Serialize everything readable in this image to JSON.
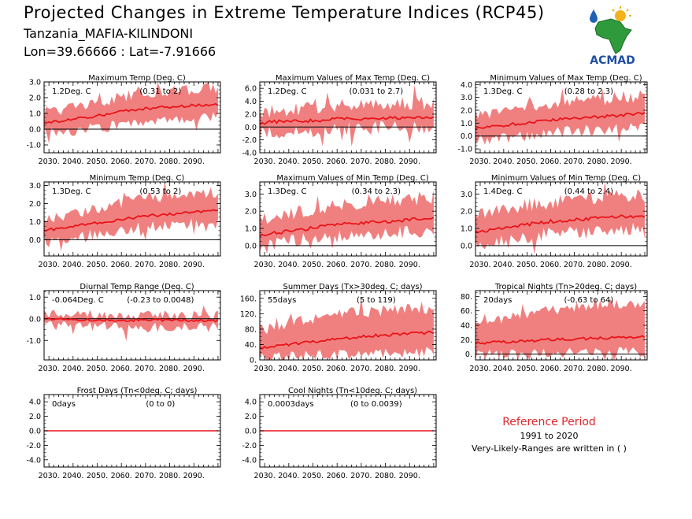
{
  "header": {
    "title": "Projected Changes in Extreme Temperature Indices (RCP45)",
    "location": "Tanzania_MAFIA-KILINDONI",
    "coordinates": "Lon=39.66666 : Lat=-7.91666"
  },
  "logo": {
    "text": "ACMAD",
    "icon": "africa-map-logo"
  },
  "reference": {
    "title": "Reference Period",
    "years": "1991 to 2020",
    "note": "Very-Likely-Ranges are written in ( )"
  },
  "colors": {
    "band": "#f08080",
    "line": "#e8141a",
    "zero": "#000000",
    "frame": "#000000"
  },
  "chart_data": [
    {
      "id": "max-temp",
      "type": "area",
      "title": "Maximum Temp (Deg. C)",
      "value_label": "1.2Deg. C",
      "range_label": "(0.31 to 2)",
      "ylim": [
        -1.5,
        3.0
      ],
      "yticks": [
        -1.0,
        0.0,
        1.0,
        2.0,
        3.0
      ],
      "xticks": [
        2030,
        2040,
        2050,
        2060,
        2070,
        2080,
        2090
      ],
      "median": [
        0.4,
        0.6,
        0.8,
        1.1,
        1.3,
        1.4,
        1.5,
        1.6
      ],
      "lower": [
        -0.2,
        -0.1,
        0.1,
        0.3,
        0.5,
        0.6,
        0.7,
        0.8
      ],
      "upper": [
        1.1,
        1.3,
        1.6,
        2.0,
        2.3,
        2.4,
        2.5,
        2.6
      ],
      "noise": 0.35,
      "seed": 3
    },
    {
      "id": "max-of-max-temp",
      "type": "area",
      "title": "Maximum Values of Max Temp (Deg. C)",
      "value_label": "1.2Deg. C",
      "range_label": "(0.031 to 2.7)",
      "ylim": [
        -4.0,
        7.0
      ],
      "yticks": [
        -4.0,
        -2.0,
        0.0,
        2.0,
        4.0,
        6.0
      ],
      "xticks": [
        2030,
        2040,
        2050,
        2060,
        2070,
        2080,
        2090
      ],
      "median": [
        0.6,
        0.9,
        1.0,
        1.2,
        1.3,
        1.4,
        1.5,
        1.6
      ],
      "lower": [
        -0.9,
        -0.8,
        -0.6,
        -0.4,
        -0.2,
        -0.1,
        0.0,
        0.1
      ],
      "upper": [
        2.3,
        2.6,
        3.0,
        3.2,
        3.4,
        3.5,
        3.6,
        3.8
      ],
      "noise": 1.1,
      "seed": 7
    },
    {
      "id": "min-of-max-temp",
      "type": "area",
      "title": "Minimum Values of Max Temp (Deg. C)",
      "value_label": "1.3Deg. C",
      "range_label": "(0.28 to 2.3)",
      "ylim": [
        -1.3,
        4.2
      ],
      "yticks": [
        -1.0,
        0.0,
        1.0,
        2.0,
        3.0,
        4.0
      ],
      "xticks": [
        2030,
        2040,
        2050,
        2060,
        2070,
        2080,
        2090
      ],
      "median": [
        0.6,
        0.8,
        1.0,
        1.2,
        1.4,
        1.5,
        1.6,
        1.8
      ],
      "lower": [
        -0.3,
        -0.2,
        0.0,
        0.2,
        0.4,
        0.5,
        0.6,
        0.7
      ],
      "upper": [
        1.6,
        1.9,
        2.2,
        2.5,
        2.7,
        2.8,
        2.9,
        3.0
      ],
      "noise": 0.45,
      "seed": 11
    },
    {
      "id": "min-temp",
      "type": "area",
      "title": "Minimum Temp (Deg. C)",
      "value_label": "1.3Deg. C",
      "range_label": "(0.53 to 2)",
      "ylim": [
        -0.9,
        3.2
      ],
      "yticks": [
        0.0,
        1.0,
        2.0,
        3.0
      ],
      "xticks": [
        2030,
        2040,
        2050,
        2060,
        2070,
        2080,
        2090
      ],
      "median": [
        0.5,
        0.7,
        0.9,
        1.1,
        1.3,
        1.4,
        1.5,
        1.6
      ],
      "lower": [
        0.0,
        0.1,
        0.3,
        0.5,
        0.7,
        0.8,
        0.9,
        1.0
      ],
      "upper": [
        1.1,
        1.4,
        1.7,
        2.0,
        2.3,
        2.4,
        2.5,
        2.6
      ],
      "noise": 0.3,
      "seed": 13
    },
    {
      "id": "max-of-min-temp",
      "type": "area",
      "title": "Maximum Values of Min Temp (Deg. C)",
      "value_label": "1.3Deg. C",
      "range_label": "(0.34 to 2.3)",
      "ylim": [
        -0.6,
        3.7
      ],
      "yticks": [
        0.0,
        1.0,
        2.0,
        3.0
      ],
      "xticks": [
        2030,
        2040,
        2050,
        2060,
        2070,
        2080,
        2090
      ],
      "median": [
        0.6,
        0.8,
        1.0,
        1.2,
        1.3,
        1.4,
        1.5,
        1.6
      ],
      "lower": [
        0.0,
        0.2,
        0.4,
        0.5,
        0.6,
        0.7,
        0.8,
        0.9
      ],
      "upper": [
        1.5,
        1.8,
        2.1,
        2.3,
        2.5,
        2.6,
        2.7,
        2.8
      ],
      "noise": 0.4,
      "seed": 17
    },
    {
      "id": "min-of-min-temp",
      "type": "area",
      "title": "Minimum Values of Min Temp (Deg. C)",
      "value_label": "1.4Deg. C",
      "range_label": "(0.44 to 2.4)",
      "ylim": [
        -0.6,
        3.7
      ],
      "yticks": [
        0.0,
        1.0,
        2.0,
        3.0
      ],
      "xticks": [
        2030,
        2040,
        2050,
        2060,
        2070,
        2080,
        2090
      ],
      "median": [
        0.8,
        1.0,
        1.2,
        1.4,
        1.5,
        1.6,
        1.7,
        1.7
      ],
      "lower": [
        0.1,
        0.3,
        0.5,
        0.7,
        0.8,
        0.9,
        1.0,
        1.0
      ],
      "upper": [
        1.7,
        2.0,
        2.3,
        2.5,
        2.7,
        2.8,
        2.9,
        2.9
      ],
      "noise": 0.4,
      "seed": 19
    },
    {
      "id": "diurnal-temp-range",
      "type": "area",
      "title": "Diurnal Temp Range (Deg. C)",
      "value_label": "-0.064Deg. C",
      "range_label": "(-0.23 to 0.0048)",
      "ylim": [
        -1.9,
        1.3
      ],
      "yticks": [
        -1.0,
        0.0,
        1.0
      ],
      "xticks": [
        2030,
        2040,
        2050,
        2060,
        2070,
        2080,
        2090
      ],
      "median": [
        0.0,
        -0.05,
        -0.05,
        -0.06,
        -0.06,
        -0.07,
        -0.07,
        -0.07
      ],
      "lower": [
        -0.3,
        -0.3,
        -0.35,
        -0.35,
        -0.4,
        -0.4,
        -0.4,
        -0.4
      ],
      "upper": [
        0.2,
        0.2,
        0.18,
        0.18,
        0.15,
        0.15,
        0.15,
        0.15
      ],
      "noise": 0.25,
      "seed": 23
    },
    {
      "id": "summer-days",
      "type": "area",
      "title": "Summer Days (Tx>30deg. C; days)",
      "value_label": "55days",
      "range_label": "(5 to 119)",
      "ylim": [
        0,
        180
      ],
      "yticks": [
        0,
        40,
        80,
        120,
        160
      ],
      "xticks": [
        2030,
        2040,
        2050,
        2060,
        2070,
        2080,
        2090
      ],
      "median": [
        30,
        38,
        46,
        54,
        60,
        65,
        68,
        72
      ],
      "lower": [
        5,
        8,
        10,
        13,
        15,
        17,
        18,
        20
      ],
      "upper": [
        78,
        92,
        105,
        115,
        122,
        128,
        132,
        135
      ],
      "noise": 15,
      "seed": 29
    },
    {
      "id": "tropical-nights",
      "type": "area",
      "title": "Tropical Nights (Tn>20deg. C; days)",
      "value_label": "20days",
      "range_label": "(-0.63 to 64)",
      "ylim": [
        -8,
        88
      ],
      "yticks": [
        0,
        20,
        40,
        60,
        80
      ],
      "xticks": [
        2030,
        2040,
        2050,
        2060,
        2070,
        2080,
        2090
      ],
      "median": [
        15,
        17,
        18,
        20,
        21,
        22,
        23,
        24
      ],
      "lower": [
        0,
        0,
        1,
        2,
        2,
        3,
        3,
        3
      ],
      "upper": [
        42,
        48,
        55,
        60,
        64,
        67,
        69,
        70
      ],
      "noise": 7,
      "seed": 31
    },
    {
      "id": "frost-days",
      "type": "area",
      "title": "Frost Days (Tn<0deg. C; days)",
      "value_label": "0days",
      "range_label": "(0 to 0)",
      "ylim": [
        -5,
        5
      ],
      "yticks": [
        -4.0,
        -2.0,
        0.0,
        2.0,
        4.0
      ],
      "xticks": [
        2030,
        2040,
        2050,
        2060,
        2070,
        2080,
        2090
      ],
      "median": [
        0,
        0,
        0,
        0,
        0,
        0,
        0,
        0
      ],
      "lower": [
        0,
        0,
        0,
        0,
        0,
        0,
        0,
        0
      ],
      "upper": [
        0,
        0,
        0,
        0,
        0,
        0,
        0,
        0
      ],
      "noise": 0,
      "seed": 1
    },
    {
      "id": "cool-nights",
      "type": "area",
      "title": "Cool Nights (Tn<10deg. C; days)",
      "value_label": "0.0003days",
      "range_label": "(0 to 0.0039)",
      "ylim": [
        -5,
        5
      ],
      "yticks": [
        -4.0,
        -2.0,
        0.0,
        2.0,
        4.0
      ],
      "xticks": [
        2030,
        2040,
        2050,
        2060,
        2070,
        2080,
        2090
      ],
      "median": [
        0,
        0,
        0,
        0,
        0,
        0,
        0,
        0
      ],
      "lower": [
        0,
        0,
        0,
        0,
        0,
        0,
        0,
        0
      ],
      "upper": [
        0,
        0,
        0,
        0,
        0,
        0,
        0,
        0
      ],
      "noise": 0,
      "seed": 2
    }
  ]
}
